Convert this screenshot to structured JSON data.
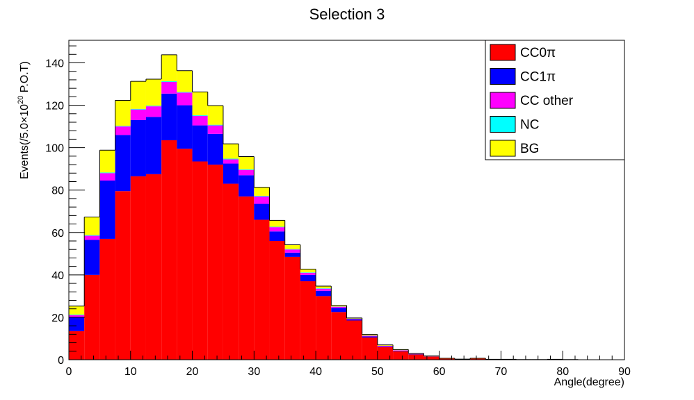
{
  "chart_data": {
    "type": "bar",
    "stacked": true,
    "title": "Selection 3",
    "xlabel": "Angle(degree)",
    "ylabel": "Events(/5.0×10",
    "ylabel_sup": "20",
    "ylabel_tail": " P.O.T)",
    "xlim": [
      0,
      90
    ],
    "ylim": [
      0,
      150
    ],
    "bin_width": 2.5,
    "x_ticks": [
      0,
      10,
      20,
      30,
      40,
      50,
      60,
      70,
      80,
      90
    ],
    "y_ticks": [
      0,
      20,
      40,
      60,
      80,
      100,
      120,
      140
    ],
    "legend_placement": "top-right",
    "grid": false,
    "series": [
      {
        "name": "CC0π",
        "color": "#ff0000",
        "values": [
          13.5,
          40,
          57,
          79.5,
          86.5,
          87.5,
          103.5,
          99.5,
          93.5,
          92,
          83,
          77,
          66,
          56,
          48.5,
          37,
          30,
          22.5,
          18.5,
          10.5,
          6,
          4,
          2.5,
          1.5,
          0.5,
          0.3,
          0.5,
          0.2,
          0.2,
          0.1,
          0.1,
          0.2,
          0.1,
          0,
          0,
          0
        ]
      },
      {
        "name": "CC1π",
        "color": "#0000ff",
        "values": [
          6.5,
          16.5,
          27.5,
          26.5,
          26.5,
          27,
          22,
          20.5,
          17,
          14.5,
          9.5,
          10,
          7.5,
          4.5,
          2,
          3,
          2.5,
          2,
          0.5,
          0.5,
          0.3,
          0.3,
          0.2,
          0.1,
          0,
          0,
          0,
          0,
          0,
          0,
          0,
          0,
          0,
          0,
          0,
          0
        ]
      },
      {
        "name": "CC other",
        "color": "#ff00ff",
        "values": [
          1,
          2,
          3.5,
          4,
          5,
          5,
          5.5,
          6,
          4.5,
          4,
          2,
          2.5,
          3.5,
          2,
          1.5,
          1,
          1,
          0.5,
          0.3,
          0.3,
          0.3,
          0.2,
          0.1,
          0,
          0,
          0,
          0,
          0,
          0,
          0,
          0,
          0,
          0,
          0,
          0,
          0
        ]
      },
      {
        "name": "NC",
        "color": "#00ffff",
        "values": [
          0.3,
          0.3,
          0.3,
          0.3,
          0.3,
          0.3,
          0.3,
          0.3,
          0.3,
          0.3,
          0.3,
          0.3,
          0.3,
          0.2,
          0.2,
          0.2,
          0.2,
          0.1,
          0.1,
          0.1,
          0,
          0,
          0,
          0,
          0,
          0,
          0,
          0,
          0,
          0,
          0,
          0,
          0,
          0,
          0,
          0
        ]
      },
      {
        "name": "BG",
        "color": "#ffff00",
        "values": [
          4,
          8.5,
          10.5,
          12,
          13,
          12.5,
          12.5,
          10,
          11,
          9,
          7,
          6,
          4,
          3,
          2,
          1.5,
          1,
          0.5,
          0.3,
          0.5,
          0.4,
          0.3,
          0.2,
          0.2,
          0.2,
          0,
          0.2,
          0,
          0,
          0,
          0,
          0,
          0,
          0,
          0,
          0
        ]
      }
    ]
  }
}
